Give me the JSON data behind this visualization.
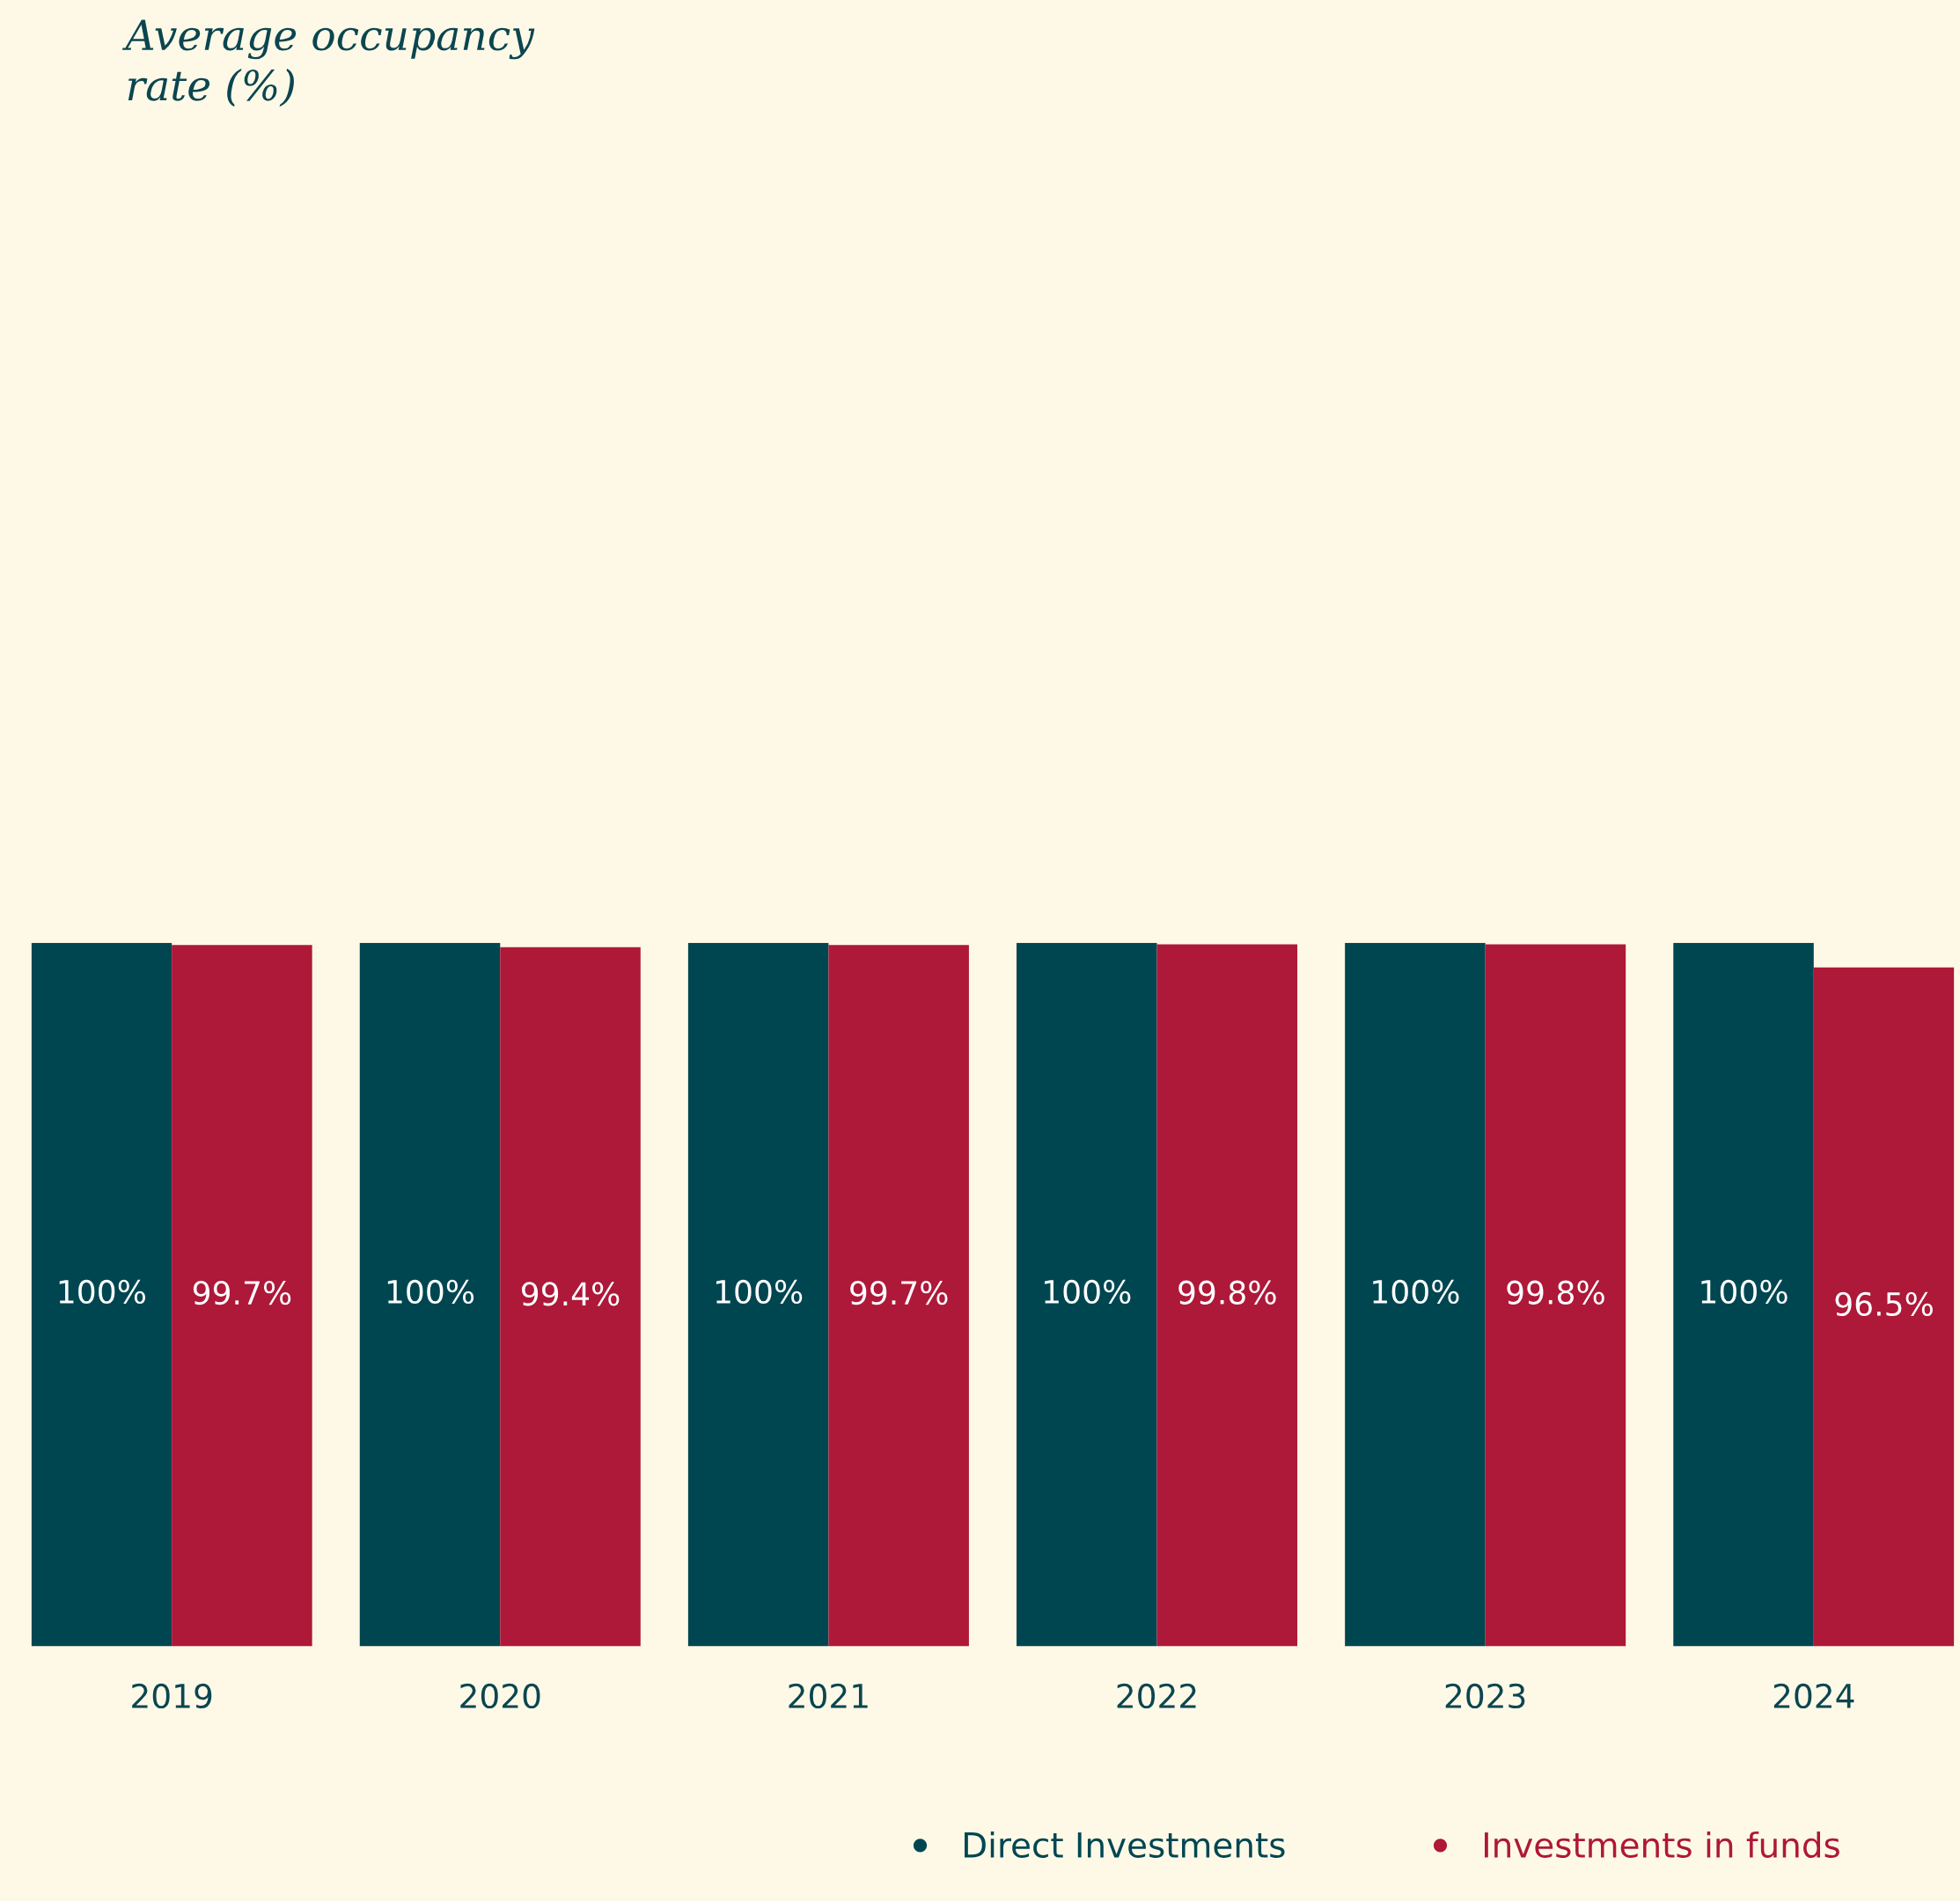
{
  "chart_data": {
    "type": "bar",
    "title": "Average occupancy\nrate (%)",
    "categories": [
      "2019",
      "2020",
      "2021",
      "2022",
      "2023",
      "2024"
    ],
    "series": [
      {
        "name": "Direct Investments",
        "color": "#004651",
        "values": [
          100,
          100,
          100,
          100,
          100,
          100
        ],
        "value_labels": [
          "100%",
          "100%",
          "100%",
          "100%",
          "100%",
          "100%"
        ]
      },
      {
        "name": "Investments in funds",
        "color": "#ae1839",
        "values": [
          99.7,
          99.4,
          99.7,
          99.8,
          99.8,
          96.5
        ],
        "value_labels": [
          "99.7%",
          "99.4%",
          "99.7%",
          "99.8%",
          "99.8%",
          "96.5%"
        ]
      }
    ],
    "legend": "bottom",
    "grid": false
  }
}
